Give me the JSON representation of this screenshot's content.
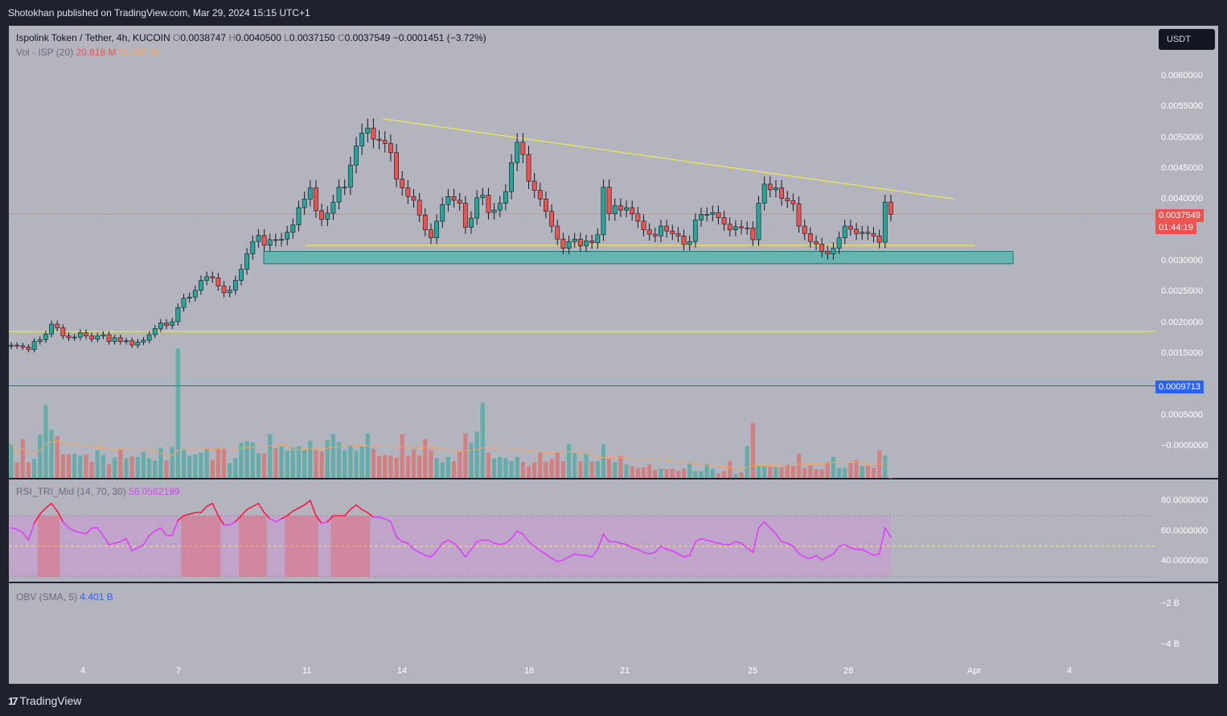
{
  "header": {
    "publisher": "Shotokhan published on TradingView.com, Mar 29, 2024 15:15 UTC+1"
  },
  "symbol": {
    "name": "Ispolink Token / Tether, 4h, KUCOIN",
    "o_label": "O",
    "o": "0.0038747",
    "h_label": "H",
    "h": "0.0040500",
    "l_label": "L",
    "l": "0.0037150",
    "c_label": "C",
    "c": "0.0037549",
    "change": "−0.0001451 (−3.72%)"
  },
  "volume": {
    "label": "Vol · ISP (20)",
    "value": "20.818 M",
    "ma": "21.087 M"
  },
  "rsi": {
    "label": "RSI_TRI_Mid (14, 70, 30)",
    "value": "56.0562199"
  },
  "obv": {
    "label": "OBV (SMA, 5)",
    "value": "4.401 B"
  },
  "currency": "USDT",
  "price_tag": {
    "price": "0.0037549",
    "countdown": "01:44:19"
  },
  "support_tag": "0.0009713",
  "price_axis": [
    "0.0060000",
    "0.0055000",
    "0.0050000",
    "0.0045000",
    "0.0040000",
    "0.0030000",
    "0.0025000",
    "0.0020000",
    "0.0015000",
    "0.0005000",
    "−0.0000000"
  ],
  "rsi_axis": [
    "80.0000000",
    "60.0000000",
    "40.0000000"
  ],
  "obv_axis": [
    "−2 B",
    "−4 B"
  ],
  "x_axis": [
    "4",
    "7",
    "11",
    "14",
    "18",
    "21",
    "25",
    "28",
    "Apr",
    "4"
  ],
  "footer": {
    "brand": "TradingView"
  },
  "colors": {
    "up": "#26a69a",
    "down": "#ef5350",
    "bg": "#b2b5be",
    "frame": "#1e222d",
    "trend": "#ffeb3b",
    "zone": "#4db6ac",
    "rsi": "#e040fb",
    "rsi_ob": "#ff1744",
    "blue": "#2962ff"
  },
  "chart_data": {
    "type": "candlestick",
    "title": "Ispolink Token / Tether, 4h, KUCOIN",
    "ylim": [
      -0.0005,
      0.0065
    ],
    "x_ticks": [
      "4",
      "7",
      "11",
      "14",
      "18",
      "21",
      "25",
      "28",
      "Apr",
      "4"
    ],
    "closes": [
      0.00163,
      0.00162,
      0.0016,
      0.00156,
      0.00169,
      0.00172,
      0.00181,
      0.00197,
      0.00191,
      0.00178,
      0.00175,
      0.00176,
      0.00183,
      0.00178,
      0.00173,
      0.00178,
      0.0018,
      0.00169,
      0.00175,
      0.00169,
      0.0017,
      0.00163,
      0.00168,
      0.00171,
      0.0018,
      0.0019,
      0.00199,
      0.00195,
      0.00201,
      0.00224,
      0.00239,
      0.00241,
      0.00252,
      0.00268,
      0.00274,
      0.00272,
      0.00259,
      0.00248,
      0.00252,
      0.00268,
      0.00286,
      0.00311,
      0.00331,
      0.00341,
      0.00325,
      0.00334,
      0.00333,
      0.00335,
      0.00346,
      0.00358,
      0.00386,
      0.004,
      0.00418,
      0.00381,
      0.00367,
      0.00377,
      0.00395,
      0.00419,
      0.00419,
      0.00455,
      0.00486,
      0.00507,
      0.00515,
      0.00497,
      0.00495,
      0.0049,
      0.00475,
      0.00432,
      0.00418,
      0.00404,
      0.00398,
      0.00374,
      0.0035,
      0.00337,
      0.00364,
      0.00391,
      0.00404,
      0.00398,
      0.00393,
      0.00354,
      0.00369,
      0.00402,
      0.00406,
      0.00378,
      0.00382,
      0.00393,
      0.00412,
      0.00459,
      0.00492,
      0.00472,
      0.00429,
      0.00414,
      0.004,
      0.0038,
      0.00356,
      0.00335,
      0.0032,
      0.00331,
      0.00335,
      0.00324,
      0.00332,
      0.00329,
      0.00342,
      0.00419,
      0.00376,
      0.00389,
      0.00382,
      0.00386,
      0.00376,
      0.00364,
      0.0035,
      0.00343,
      0.0034,
      0.00356,
      0.00348,
      0.00344,
      0.0034,
      0.00326,
      0.00331,
      0.00366,
      0.00375,
      0.00375,
      0.00378,
      0.0037,
      0.00359,
      0.0035,
      0.00355,
      0.00353,
      0.00353,
      0.00334,
      0.00393,
      0.00424,
      0.00415,
      0.00418,
      0.00401,
      0.00397,
      0.00392,
      0.00356,
      0.00344,
      0.00331,
      0.00327,
      0.00315,
      0.00311,
      0.0032,
      0.00337,
      0.00356,
      0.00351,
      0.00344,
      0.00346,
      0.00344,
      0.0034,
      0.0033,
      0.00395,
      0.00375
    ],
    "volume_series": [
      0.00055,
      0.00025,
      0.00063,
      0.00025,
      0.00031,
      0.0007,
      0.00118,
      0.00078,
      0.00068,
      0.00038,
      0.00038,
      0.00039,
      0.00036,
      0.00038,
      0.00026,
      0.00045,
      0.00037,
      0.00022,
      0.00033,
      0.00046,
      0.00032,
      0.00035,
      0.00034,
      0.00042,
      0.00032,
      0.00028,
      0.00049,
      0.00028,
      0.0005,
      0.0021,
      0.00047,
      0.00036,
      0.00038,
      0.00041,
      0.00048,
      0.00029,
      0.00048,
      0.00047,
      0.00024,
      0.00032,
      0.00057,
      0.0006,
      0.00057,
      0.0004,
      0.0004,
      0.00071,
      0.00048,
      0.00051,
      0.00044,
      0.00049,
      0.00051,
      0.00045,
      0.0006,
      0.00045,
      0.00043,
      0.00061,
      0.00071,
      0.00058,
      0.00045,
      0.00053,
      0.00044,
      0.00052,
      0.00072,
      0.00047,
      0.00035,
      0.00037,
      0.00036,
      0.00033,
      0.00071,
      0.00036,
      0.00046,
      0.00036,
      0.00063,
      0.00045,
      0.00032,
      0.00025,
      0.00034,
      0.00027,
      0.00042,
      0.00072,
      0.00057,
      0.00075,
      0.00122,
      0.00041,
      0.00031,
      0.00034,
      0.00032,
      0.00027,
      0.00034,
      0.00026,
      0.00019,
      0.00025,
      0.00041,
      0.00026,
      0.00031,
      0.00042,
      0.00027,
      0.00055,
      0.0004,
      0.00027,
      0.00039,
      0.00027,
      0.00027,
      0.00054,
      0.00031,
      0.00026,
      0.00036,
      0.00022,
      0.00019,
      0.00016,
      0.00017,
      0.00022,
      0.00013,
      0.00015,
      0.00014,
      0.00015,
      0.00011,
      0.00015,
      0.00023,
      0.00011,
      0.00011,
      0.00023,
      0.00015,
      7e-05,
      0.00011,
      0.00027,
      6e-05,
      9e-05,
      0.00052,
      0.00089,
      0.00019,
      0.00019,
      0.00018,
      0.00017,
      0.00017,
      0.00022,
      0.00019,
      0.00039,
      0.00016,
      0.0002,
      0.00014,
      0.00014,
      0.00025,
      0.00034,
      0.00016,
      0.00016,
      0.00024,
      0.00029,
      0.00019,
      0.0002,
      0.00016,
      0.00045,
      0.00036
    ],
    "rsi_series": [
      62,
      61,
      59,
      54,
      65,
      71,
      75,
      78,
      73,
      66,
      62,
      60,
      59,
      58,
      62,
      62,
      57,
      51,
      52,
      53,
      55,
      47,
      49,
      51,
      57,
      60,
      62,
      57,
      57,
      67,
      70,
      71,
      72,
      72,
      76,
      78,
      70,
      64,
      64,
      66,
      70,
      74,
      76,
      78,
      72,
      68,
      66,
      68,
      70,
      73,
      75,
      77,
      80,
      70,
      65,
      66,
      70,
      70,
      70,
      74,
      77,
      74,
      72,
      69,
      69,
      68,
      66,
      56,
      53,
      52,
      48,
      46,
      44,
      43,
      47,
      52,
      54,
      52,
      48,
      43,
      48,
      53,
      54,
      54,
      52,
      51,
      52,
      55,
      60,
      58,
      53,
      50,
      47,
      45,
      42,
      40,
      41,
      43,
      45,
      44,
      44,
      43,
      48,
      58,
      53,
      53,
      52,
      51,
      49,
      48,
      46,
      45,
      46,
      50,
      48,
      47,
      45,
      43,
      44,
      53,
      55,
      54,
      53,
      52,
      51,
      51,
      53,
      52,
      49,
      46,
      62,
      66,
      62,
      58,
      53,
      52,
      50,
      45,
      43,
      42,
      44,
      41,
      43,
      45,
      50,
      51,
      49,
      48,
      48,
      46,
      44,
      45,
      62,
      56
    ],
    "rsi_bands": [
      70,
      50,
      30
    ],
    "trend_line": [
      [
        0.0053,
        0.004
      ]
    ],
    "support_zone": [
      0.00295,
      0.00315
    ],
    "horizontal_lines": [
      0.00325,
      0.00185,
      0.0009713
    ],
    "last_price": 0.0037549
  }
}
